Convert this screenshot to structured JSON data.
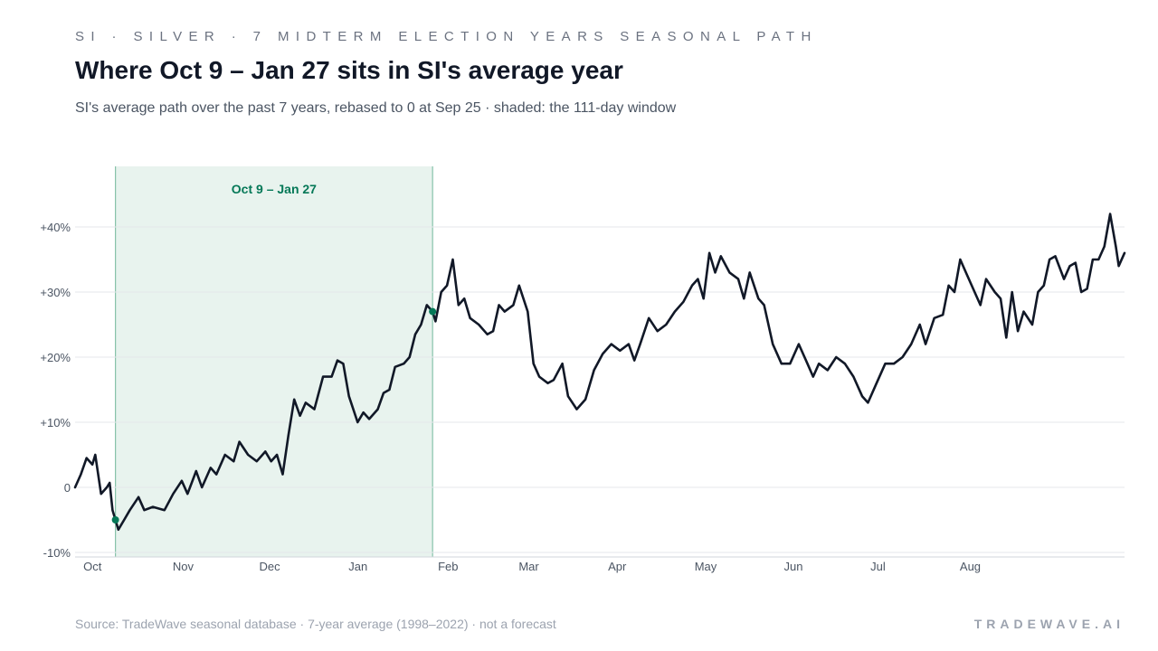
{
  "header": {
    "kicker": "SI · SILVER · 7 MIDTERM ELECTION YEARS SEASONAL PATH",
    "title": "Where Oct 9 – Jan 27 sits in SI's average year",
    "subtitle": "SI's average path over the past 7 years, rebased to 0 at Sep 25 · shaded: the 111-day window"
  },
  "footer": {
    "source": "Source: TradeWave seasonal database · 7-year average (1998–2022) · not a forecast",
    "brand": "TRADEWAVE.AI"
  },
  "colors": {
    "line": "#111827",
    "band_fill": "#e8f3ee",
    "band_edge": "#86c2a9",
    "marker": "#047857"
  },
  "chart_data": {
    "type": "line",
    "title": "Where Oct 9 – Jan 27 sits in SI's average year",
    "xlabel": "",
    "ylabel": "",
    "x_start": "Sep 25",
    "x_end": "Sep 24",
    "ylim": [
      -10,
      50
    ],
    "yticks": [
      {
        "value": 40,
        "label": "+40%"
      },
      {
        "value": 30,
        "label": "+30%"
      },
      {
        "value": 20,
        "label": "+20%"
      },
      {
        "value": 10,
        "label": "+10%"
      },
      {
        "value": 0,
        "label": "0"
      },
      {
        "value": -10,
        "label": "-10%"
      }
    ],
    "xticks": [
      {
        "date": "Oct 1",
        "label": "Oct"
      },
      {
        "date": "Nov 1",
        "label": "Nov"
      },
      {
        "date": "Dec 1",
        "label": "Dec"
      },
      {
        "date": "Jan 1",
        "label": "Jan"
      },
      {
        "date": "Feb 1",
        "label": "Feb"
      },
      {
        "date": "Mar 1",
        "label": "Mar"
      },
      {
        "date": "Apr 1",
        "label": "Apr"
      },
      {
        "date": "May 1",
        "label": "May"
      },
      {
        "date": "Jun 1",
        "label": "Jun"
      },
      {
        "date": "Jul 1",
        "label": "Jul"
      },
      {
        "date": "Aug 1",
        "label": "Aug"
      }
    ],
    "grid": true,
    "shaded_window": {
      "start": "Oct 9",
      "end": "Jan 27",
      "label": "Oct 9 – Jan 27"
    },
    "markers": [
      {
        "date": "Oct 9",
        "value": -5
      },
      {
        "date": "Jan 27",
        "value": 27
      }
    ],
    "series": [
      {
        "values": [
          {
            "date": "Sep 25",
            "value": 0
          },
          {
            "date": "Sep 27",
            "value": 2
          },
          {
            "date": "Sep 29",
            "value": 4.5
          },
          {
            "date": "Oct 1",
            "value": 3.5
          },
          {
            "date": "Oct 2",
            "value": 5
          },
          {
            "date": "Oct 4",
            "value": -1
          },
          {
            "date": "Oct 6",
            "value": 0
          },
          {
            "date": "Oct 7",
            "value": 0.7
          },
          {
            "date": "Oct 8",
            "value": -3.5
          },
          {
            "date": "Oct 9",
            "value": -5
          },
          {
            "date": "Oct 10",
            "value": -6.5
          },
          {
            "date": "Oct 12",
            "value": -5
          },
          {
            "date": "Oct 14",
            "value": -3.5
          },
          {
            "date": "Oct 17",
            "value": -1.5
          },
          {
            "date": "Oct 19",
            "value": -3.5
          },
          {
            "date": "Oct 22",
            "value": -3
          },
          {
            "date": "Oct 26",
            "value": -3.5
          },
          {
            "date": "Oct 29",
            "value": -1
          },
          {
            "date": "Nov 1",
            "value": 1
          },
          {
            "date": "Nov 3",
            "value": -1
          },
          {
            "date": "Nov 6",
            "value": 2.5
          },
          {
            "date": "Nov 8",
            "value": 0
          },
          {
            "date": "Nov 11",
            "value": 3
          },
          {
            "date": "Nov 13",
            "value": 2
          },
          {
            "date": "Nov 16",
            "value": 5
          },
          {
            "date": "Nov 19",
            "value": 4
          },
          {
            "date": "Nov 21",
            "value": 7
          },
          {
            "date": "Nov 24",
            "value": 5
          },
          {
            "date": "Nov 27",
            "value": 4
          },
          {
            "date": "Nov 30",
            "value": 5.5
          },
          {
            "date": "Dec 2",
            "value": 4
          },
          {
            "date": "Dec 4",
            "value": 5
          },
          {
            "date": "Dec 6",
            "value": 2
          },
          {
            "date": "Dec 8",
            "value": 8
          },
          {
            "date": "Dec 10",
            "value": 13.5
          },
          {
            "date": "Dec 12",
            "value": 11
          },
          {
            "date": "Dec 14",
            "value": 13
          },
          {
            "date": "Dec 17",
            "value": 12
          },
          {
            "date": "Dec 20",
            "value": 17
          },
          {
            "date": "Dec 23",
            "value": 17
          },
          {
            "date": "Dec 25",
            "value": 19.5
          },
          {
            "date": "Dec 27",
            "value": 19
          },
          {
            "date": "Dec 29",
            "value": 14
          },
          {
            "date": "Jan 1",
            "value": 10
          },
          {
            "date": "Jan 3",
            "value": 11.5
          },
          {
            "date": "Jan 5",
            "value": 10.5
          },
          {
            "date": "Jan 8",
            "value": 12
          },
          {
            "date": "Jan 10",
            "value": 14.5
          },
          {
            "date": "Jan 12",
            "value": 15
          },
          {
            "date": "Jan 14",
            "value": 18.5
          },
          {
            "date": "Jan 17",
            "value": 19
          },
          {
            "date": "Jan 19",
            "value": 20
          },
          {
            "date": "Jan 21",
            "value": 23.5
          },
          {
            "date": "Jan 23",
            "value": 25
          },
          {
            "date": "Jan 25",
            "value": 28
          },
          {
            "date": "Jan 27",
            "value": 27
          },
          {
            "date": "Jan 28",
            "value": 25.5
          },
          {
            "date": "Jan 30",
            "value": 30
          },
          {
            "date": "Feb 1",
            "value": 31
          },
          {
            "date": "Feb 3",
            "value": 35
          },
          {
            "date": "Feb 5",
            "value": 28
          },
          {
            "date": "Feb 7",
            "value": 29
          },
          {
            "date": "Feb 9",
            "value": 26
          },
          {
            "date": "Feb 12",
            "value": 25
          },
          {
            "date": "Feb 15",
            "value": 23.5
          },
          {
            "date": "Feb 17",
            "value": 24
          },
          {
            "date": "Feb 19",
            "value": 28
          },
          {
            "date": "Feb 21",
            "value": 27
          },
          {
            "date": "Feb 24",
            "value": 28
          },
          {
            "date": "Feb 26",
            "value": 31
          },
          {
            "date": "Mar 1",
            "value": 27
          },
          {
            "date": "Mar 3",
            "value": 19
          },
          {
            "date": "Mar 5",
            "value": 17
          },
          {
            "date": "Mar 8",
            "value": 16
          },
          {
            "date": "Mar 10",
            "value": 16.5
          },
          {
            "date": "Mar 13",
            "value": 19
          },
          {
            "date": "Mar 15",
            "value": 14
          },
          {
            "date": "Mar 18",
            "value": 12
          },
          {
            "date": "Mar 21",
            "value": 13.5
          },
          {
            "date": "Mar 24",
            "value": 18
          },
          {
            "date": "Mar 27",
            "value": 20.5
          },
          {
            "date": "Mar 30",
            "value": 22
          },
          {
            "date": "Apr 2",
            "value": 21
          },
          {
            "date": "Apr 5",
            "value": 22
          },
          {
            "date": "Apr 7",
            "value": 19.5
          },
          {
            "date": "Apr 9",
            "value": 22
          },
          {
            "date": "Apr 12",
            "value": 26
          },
          {
            "date": "Apr 15",
            "value": 24
          },
          {
            "date": "Apr 18",
            "value": 25
          },
          {
            "date": "Apr 21",
            "value": 27
          },
          {
            "date": "Apr 24",
            "value": 28.5
          },
          {
            "date": "Apr 27",
            "value": 31
          },
          {
            "date": "Apr 29",
            "value": 32
          },
          {
            "date": "May 1",
            "value": 29
          },
          {
            "date": "May 3",
            "value": 36
          },
          {
            "date": "May 5",
            "value": 33
          },
          {
            "date": "May 7",
            "value": 35.5
          },
          {
            "date": "May 10",
            "value": 33
          },
          {
            "date": "May 13",
            "value": 32
          },
          {
            "date": "May 15",
            "value": 29
          },
          {
            "date": "May 17",
            "value": 33
          },
          {
            "date": "May 20",
            "value": 29
          },
          {
            "date": "May 22",
            "value": 28
          },
          {
            "date": "May 25",
            "value": 22
          },
          {
            "date": "May 28",
            "value": 19
          },
          {
            "date": "May 31",
            "value": 19
          },
          {
            "date": "Jun 3",
            "value": 22
          },
          {
            "date": "Jun 6",
            "value": 19
          },
          {
            "date": "Jun 8",
            "value": 17
          },
          {
            "date": "Jun 10",
            "value": 19
          },
          {
            "date": "Jun 13",
            "value": 18
          },
          {
            "date": "Jun 16",
            "value": 20
          },
          {
            "date": "Jun 19",
            "value": 19
          },
          {
            "date": "Jun 22",
            "value": 17
          },
          {
            "date": "Jun 25",
            "value": 14
          },
          {
            "date": "Jun 27",
            "value": 13
          },
          {
            "date": "Jun 30",
            "value": 16
          },
          {
            "date": "Jul 3",
            "value": 19
          },
          {
            "date": "Jul 6",
            "value": 19
          },
          {
            "date": "Jul 9",
            "value": 20
          },
          {
            "date": "Jul 12",
            "value": 22
          },
          {
            "date": "Jul 15",
            "value": 25
          },
          {
            "date": "Jul 17",
            "value": 22
          },
          {
            "date": "Jul 20",
            "value": 26
          },
          {
            "date": "Jul 23",
            "value": 26.5
          },
          {
            "date": "Jul 25",
            "value": 31
          },
          {
            "date": "Jul 27",
            "value": 30
          },
          {
            "date": "Jul 29",
            "value": 35
          },
          {
            "date": "Jul 31",
            "value": 33
          },
          {
            "date": "Aug 3",
            "value": 30
          },
          {
            "date": "Aug 5",
            "value": 28
          },
          {
            "date": "Aug 7",
            "value": 32
          },
          {
            "date": "Aug 10",
            "value": 30
          },
          {
            "date": "Aug 12",
            "value": 29
          },
          {
            "date": "Aug 14",
            "value": 23
          },
          {
            "date": "Aug 16",
            "value": 30
          },
          {
            "date": "Aug 18",
            "value": 24
          },
          {
            "date": "Aug 20",
            "value": 27
          },
          {
            "date": "Aug 23",
            "value": 25
          },
          {
            "date": "Aug 25",
            "value": 30
          },
          {
            "date": "Aug 27",
            "value": 31
          },
          {
            "date": "Aug 29",
            "value": 35
          },
          {
            "date": "Aug 31",
            "value": 35.5
          },
          {
            "date": "Sep 3",
            "value": 32
          },
          {
            "date": "Sep 5",
            "value": 34
          },
          {
            "date": "Sep 7",
            "value": 34.5
          },
          {
            "date": "Sep 9",
            "value": 30
          },
          {
            "date": "Sep 11",
            "value": 30.5
          },
          {
            "date": "Sep 13",
            "value": 35
          },
          {
            "date": "Sep 15",
            "value": 35
          },
          {
            "date": "Sep 17",
            "value": 37
          },
          {
            "date": "Sep 19",
            "value": 42
          },
          {
            "date": "Sep 21",
            "value": 37
          },
          {
            "date": "Sep 22",
            "value": 34
          },
          {
            "date": "Sep 24",
            "value": 36
          }
        ]
      }
    ]
  }
}
